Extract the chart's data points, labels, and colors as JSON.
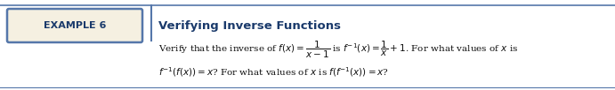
{
  "page_bg": "#ffffff",
  "border_color": "#5577aa",
  "example_label": "EXAMPLE 6",
  "example_label_color": "#1a3a6b",
  "title_text": "Verifying Inverse Functions",
  "title_color": "#1a3a6b",
  "body_line1": "Verify that the inverse of $f(x) = \\dfrac{1}{x-1}$ is $f^{-1}(x) = \\dfrac{1}{x} + 1$. For what values of $x$ is",
  "body_line2": "$f^{-1}(f(x)) = x$? For what values of $x$ is $f(f^{-1}(x)) = x$?",
  "body_color": "#111111",
  "divider_color": "#5577aa",
  "label_box_fill": "#f5f0e1",
  "figsize": [
    6.91,
    1.02
  ],
  "dpi": 100
}
